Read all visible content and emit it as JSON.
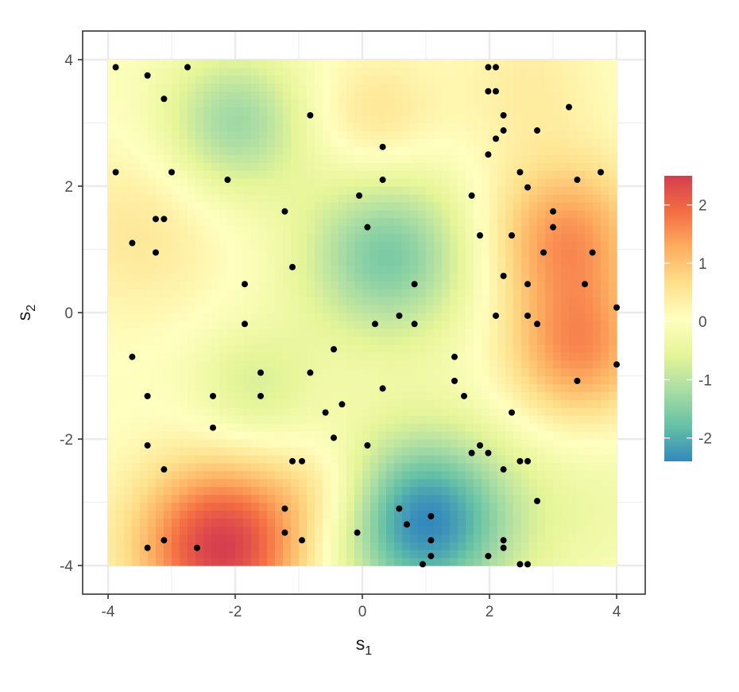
{
  "chart_data": {
    "type": "heatmap",
    "title": "",
    "xlabel": {
      "main": "s",
      "sub": "1"
    },
    "ylabel": {
      "main": "s",
      "sub": "2"
    },
    "xlim": [
      -4,
      4
    ],
    "ylim": [
      -4,
      4
    ],
    "x_ticks": [
      -4,
      -2,
      0,
      2,
      4
    ],
    "x_tick_labels": [
      "-4",
      "-2",
      "0",
      "2",
      "4"
    ],
    "y_ticks": [
      -4,
      -2,
      0,
      2,
      4
    ],
    "y_tick_labels": [
      "-4",
      "-2",
      "0",
      "2",
      "4"
    ],
    "grid": true,
    "legend": {
      "position": "right",
      "range": [
        -2.4,
        2.5
      ],
      "breaks": [
        2,
        1,
        0,
        -1,
        -2
      ],
      "break_labels": [
        "2",
        "1",
        "0",
        "-1",
        "-2"
      ],
      "colors": [
        "#3288bd",
        "#66c2a5",
        "#abdda4",
        "#e6f598",
        "#ffffbf",
        "#fee08b",
        "#fdae61",
        "#f46d43",
        "#d53e4f"
      ]
    },
    "field_features": [
      {
        "x": -2.2,
        "y": -3.7,
        "value": 2.5,
        "spread": 0.95
      },
      {
        "x": 1.0,
        "y": -3.3,
        "value": -2.4,
        "spread": 1.0
      },
      {
        "x": 0.4,
        "y": 0.9,
        "value": -1.6,
        "spread": 0.95
      },
      {
        "x": -2.0,
        "y": 3.0,
        "value": -1.3,
        "spread": 0.8
      },
      {
        "x": 3.2,
        "y": 1.2,
        "value": 1.5,
        "spread": 0.85
      },
      {
        "x": 3.4,
        "y": -0.6,
        "value": 1.5,
        "spread": 0.8
      },
      {
        "x": -3.5,
        "y": 1.3,
        "value": 0.5,
        "spread": 1.0
      },
      {
        "x": 0.2,
        "y": 3.1,
        "value": 0.6,
        "spread": 0.7
      },
      {
        "x": 2.6,
        "y": 3.6,
        "value": 0.4,
        "spread": 0.8
      },
      {
        "x": -1.7,
        "y": -1.2,
        "value": -0.7,
        "spread": 0.7
      },
      {
        "x": -0.6,
        "y": -2.8,
        "value": 0.5,
        "spread": 0.6
      },
      {
        "x": 3.6,
        "y": -3.0,
        "value": -0.3,
        "spread": 0.9
      }
    ],
    "points": [
      [
        -3.88,
        3.88
      ],
      [
        -3.38,
        3.75
      ],
      [
        -2.75,
        3.88
      ],
      [
        -3.12,
        3.38
      ],
      [
        -0.82,
        3.12
      ],
      [
        1.98,
        3.88
      ],
      [
        2.1,
        3.88
      ],
      [
        1.98,
        3.5
      ],
      [
        2.1,
        3.5
      ],
      [
        3.25,
        3.25
      ],
      [
        2.22,
        3.12
      ],
      [
        2.22,
        2.88
      ],
      [
        2.75,
        2.88
      ],
      [
        2.1,
        2.75
      ],
      [
        0.32,
        2.62
      ],
      [
        1.98,
        2.5
      ],
      [
        -3.88,
        2.22
      ],
      [
        -3.0,
        2.22
      ],
      [
        -2.12,
        2.1
      ],
      [
        0.32,
        2.1
      ],
      [
        2.48,
        2.22
      ],
      [
        3.38,
        2.1
      ],
      [
        3.75,
        2.22
      ],
      [
        2.6,
        1.98
      ],
      [
        -0.05,
        1.85
      ],
      [
        1.72,
        1.85
      ],
      [
        -1.22,
        1.6
      ],
      [
        3.0,
        1.6
      ],
      [
        -3.25,
        1.48
      ],
      [
        -3.12,
        1.48
      ],
      [
        0.08,
        1.35
      ],
      [
        3.0,
        1.35
      ],
      [
        1.85,
        1.22
      ],
      [
        2.35,
        1.22
      ],
      [
        -3.62,
        1.1
      ],
      [
        -3.25,
        0.95
      ],
      [
        2.85,
        0.95
      ],
      [
        3.62,
        0.95
      ],
      [
        -1.1,
        0.72
      ],
      [
        2.22,
        0.58
      ],
      [
        -1.85,
        0.45
      ],
      [
        0.82,
        0.45
      ],
      [
        2.6,
        0.45
      ],
      [
        3.5,
        0.45
      ],
      [
        4.0,
        0.08
      ],
      [
        0.58,
        -0.05
      ],
      [
        2.1,
        -0.05
      ],
      [
        2.6,
        -0.05
      ],
      [
        -1.85,
        -0.18
      ],
      [
        0.2,
        -0.18
      ],
      [
        0.82,
        -0.18
      ],
      [
        2.75,
        -0.18
      ],
      [
        -0.45,
        -0.58
      ],
      [
        -3.62,
        -0.7
      ],
      [
        1.45,
        -0.7
      ],
      [
        4.0,
        -0.82
      ],
      [
        -1.6,
        -0.95
      ],
      [
        -0.82,
        -0.95
      ],
      [
        1.45,
        -1.08
      ],
      [
        3.38,
        -1.08
      ],
      [
        0.32,
        -1.2
      ],
      [
        -3.38,
        -1.32
      ],
      [
        -2.35,
        -1.32
      ],
      [
        -1.6,
        -1.32
      ],
      [
        1.6,
        -1.32
      ],
      [
        -0.32,
        -1.45
      ],
      [
        -0.58,
        -1.58
      ],
      [
        2.35,
        -1.58
      ],
      [
        -2.35,
        -1.82
      ],
      [
        -0.45,
        -1.98
      ],
      [
        -3.38,
        -2.1
      ],
      [
        0.08,
        -2.1
      ],
      [
        1.85,
        -2.1
      ],
      [
        1.72,
        -2.22
      ],
      [
        1.98,
        -2.22
      ],
      [
        -1.1,
        -2.35
      ],
      [
        -0.95,
        -2.35
      ],
      [
        2.48,
        -2.35
      ],
      [
        2.6,
        -2.35
      ],
      [
        -3.12,
        -2.48
      ],
      [
        2.22,
        -2.48
      ],
      [
        2.75,
        -2.98
      ],
      [
        -1.22,
        -3.1
      ],
      [
        0.58,
        -3.1
      ],
      [
        1.08,
        -3.22
      ],
      [
        0.7,
        -3.35
      ],
      [
        -1.22,
        -3.48
      ],
      [
        -0.08,
        -3.48
      ],
      [
        -3.12,
        -3.6
      ],
      [
        -0.95,
        -3.6
      ],
      [
        1.08,
        -3.6
      ],
      [
        2.22,
        -3.6
      ],
      [
        -3.38,
        -3.72
      ],
      [
        -2.6,
        -3.72
      ],
      [
        2.22,
        -3.72
      ],
      [
        1.08,
        -3.85
      ],
      [
        1.98,
        -3.85
      ],
      [
        0.95,
        -3.98
      ],
      [
        2.48,
        -3.98
      ],
      [
        2.6,
        -3.98
      ]
    ]
  }
}
